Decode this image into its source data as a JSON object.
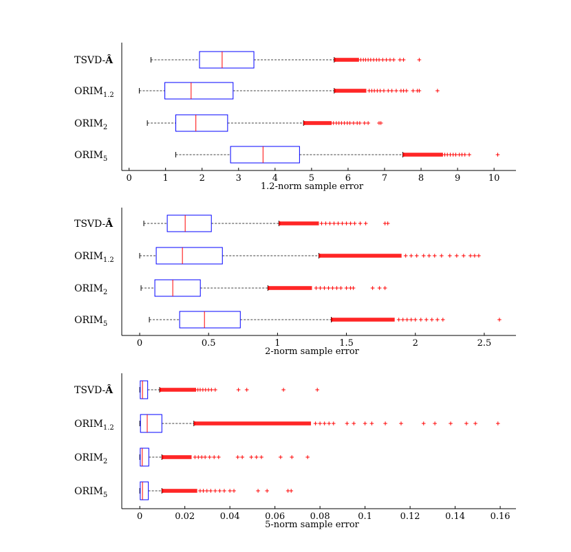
{
  "chart_data": [
    {
      "type": "boxplot",
      "title": "",
      "xlabel": "1.2-norm sample error",
      "ylabel": "",
      "xlim": [
        -0.2,
        10.6
      ],
      "xticks": [
        0,
        1,
        2,
        3,
        4,
        5,
        6,
        7,
        8,
        9,
        10
      ],
      "xtick_labels": [
        "0",
        "1",
        "2",
        "3",
        "4",
        "5",
        "6",
        "7",
        "8",
        "9",
        "10"
      ],
      "series": [
        {
          "name": "TSVD-Â",
          "label_main": "TSVD-",
          "label_bold": "Â",
          "label_sub": "",
          "whisker_low": 0.6,
          "q1": 1.93,
          "median": 2.55,
          "q3": 3.42,
          "whisker_high": 5.62,
          "outlier_dense_end": 6.3,
          "outliers": [
            6.35,
            6.42,
            6.48,
            6.55,
            6.62,
            6.7,
            6.78,
            6.85,
            6.95,
            7.05,
            7.15,
            7.25,
            7.42,
            7.52,
            7.95
          ]
        },
        {
          "name": "ORIM1.2",
          "label_main": "ORIM",
          "label_bold": "",
          "label_sub": "1.2",
          "whisker_low": 0.28,
          "q1": 0.98,
          "median": 1.7,
          "q3": 2.85,
          "whisker_high": 5.62,
          "outlier_dense_end": 6.5,
          "outliers": [
            6.58,
            6.65,
            6.72,
            6.8,
            6.88,
            6.98,
            7.1,
            7.2,
            7.32,
            7.45,
            7.52,
            7.6,
            7.78,
            7.9,
            7.95,
            8.45
          ]
        },
        {
          "name": "ORIM2",
          "label_main": "ORIM",
          "label_bold": "",
          "label_sub": "2",
          "whisker_low": 0.5,
          "q1": 1.28,
          "median": 1.83,
          "q3": 2.7,
          "whisker_high": 4.78,
          "outlier_dense_end": 5.55,
          "outliers": [
            5.6,
            5.68,
            5.75,
            5.82,
            5.9,
            5.98,
            6.05,
            6.15,
            6.25,
            6.32,
            6.45,
            6.55,
            6.85,
            6.9
          ]
        },
        {
          "name": "ORIM5",
          "label_main": "ORIM",
          "label_bold": "",
          "label_sub": "5",
          "whisker_low": 1.28,
          "q1": 2.78,
          "median": 3.67,
          "q3": 4.67,
          "whisker_high": 7.5,
          "outlier_dense_end": 8.6,
          "outliers": [
            8.65,
            8.72,
            8.8,
            8.88,
            8.95,
            9.05,
            9.12,
            9.2,
            9.32,
            10.1
          ]
        }
      ]
    },
    {
      "type": "boxplot",
      "title": "",
      "xlabel": "2-norm sample error",
      "ylabel": "",
      "xlim": [
        -0.13,
        2.73
      ],
      "xticks": [
        0,
        0.5,
        1,
        1.5,
        2,
        2.5
      ],
      "xtick_labels": [
        "0",
        "0.5",
        "1",
        "1.5",
        "2",
        "2.5"
      ],
      "series": [
        {
          "name": "TSVD-Â",
          "label_main": "TSVD-",
          "label_bold": "Â",
          "label_sub": "",
          "whisker_low": 0.03,
          "q1": 0.2,
          "median": 0.33,
          "q3": 0.52,
          "whisker_high": 1.01,
          "outlier_dense_end": 1.3,
          "outliers": [
            1.32,
            1.35,
            1.38,
            1.41,
            1.44,
            1.47,
            1.5,
            1.53,
            1.56,
            1.6,
            1.64,
            1.78,
            1.8
          ]
        },
        {
          "name": "ORIM1.2",
          "label_main": "ORIM",
          "label_bold": "",
          "label_sub": "1.2",
          "whisker_low": 0.0,
          "q1": 0.12,
          "median": 0.31,
          "q3": 0.6,
          "whisker_high": 1.3,
          "outlier_dense_end": 1.9,
          "outliers": [
            1.93,
            1.97,
            2.01,
            2.06,
            2.1,
            2.14,
            2.19,
            2.25,
            2.3,
            2.35,
            2.4,
            2.43,
            2.46
          ]
        },
        {
          "name": "ORIM2",
          "label_main": "ORIM",
          "label_bold": "",
          "label_sub": "2",
          "whisker_low": 0.01,
          "q1": 0.11,
          "median": 0.24,
          "q3": 0.44,
          "whisker_high": 0.93,
          "outlier_dense_end": 1.25,
          "outliers": [
            1.28,
            1.31,
            1.34,
            1.37,
            1.4,
            1.43,
            1.46,
            1.5,
            1.53,
            1.55,
            1.69,
            1.74,
            1.78
          ]
        },
        {
          "name": "ORIM5",
          "label_main": "ORIM",
          "label_bold": "",
          "label_sub": "5",
          "whisker_low": 0.07,
          "q1": 0.29,
          "median": 0.47,
          "q3": 0.73,
          "whisker_high": 1.39,
          "outlier_dense_end": 1.85,
          "outliers": [
            1.88,
            1.91,
            1.94,
            1.97,
            2.0,
            2.04,
            2.08,
            2.12,
            2.16,
            2.2,
            2.61
          ]
        }
      ]
    },
    {
      "type": "boxplot",
      "title": "",
      "xlabel": "5-norm sample error",
      "ylabel": "",
      "xlim": [
        -0.008,
        0.167
      ],
      "xticks": [
        0,
        0.02,
        0.04,
        0.06,
        0.08,
        0.1,
        0.12,
        0.14,
        0.16
      ],
      "xtick_labels": [
        "0",
        "0.02",
        "0.04",
        "0.06",
        "0.08",
        "0.1",
        "0.12",
        "0.14",
        "0.16"
      ],
      "series": [
        {
          "name": "TSVD-Â",
          "label_main": "TSVD-",
          "label_bold": "Â",
          "label_sub": "",
          "whisker_low": 0.0,
          "q1": 0.0002,
          "median": 0.0012,
          "q3": 0.0035,
          "whisker_high": 0.0088,
          "outlier_dense_end": 0.025,
          "outliers": [
            0.0258,
            0.0268,
            0.028,
            0.0292,
            0.0305,
            0.0318,
            0.0335,
            0.0438,
            0.0475,
            0.0638,
            0.0788
          ]
        },
        {
          "name": "ORIM1.2",
          "label_main": "ORIM",
          "label_bold": "",
          "label_sub": "1.2",
          "whisker_low": 0.0,
          "q1": 0.0003,
          "median": 0.0033,
          "q3": 0.0098,
          "whisker_high": 0.024,
          "outlier_dense_end": 0.076,
          "outliers": [
            0.078,
            0.08,
            0.082,
            0.084,
            0.086,
            0.092,
            0.095,
            0.1,
            0.103,
            0.109,
            0.116,
            0.126,
            0.131,
            0.138,
            0.145,
            0.149,
            0.159
          ]
        },
        {
          "name": "ORIM2",
          "label_main": "ORIM",
          "label_bold": "",
          "label_sub": "2",
          "whisker_low": 0.0,
          "q1": 0.0002,
          "median": 0.0011,
          "q3": 0.004,
          "whisker_high": 0.0098,
          "outlier_dense_end": 0.023,
          "outliers": [
            0.0245,
            0.026,
            0.0275,
            0.029,
            0.031,
            0.033,
            0.035,
            0.0435,
            0.0455,
            0.0495,
            0.0518,
            0.054,
            0.0625,
            0.0675,
            0.0745
          ]
        },
        {
          "name": "ORIM5",
          "label_main": "ORIM",
          "label_bold": "",
          "label_sub": "5",
          "whisker_low": 0.0,
          "q1": 0.0002,
          "median": 0.0012,
          "q3": 0.0038,
          "whisker_high": 0.0098,
          "outlier_dense_end": 0.0255,
          "outliers": [
            0.0268,
            0.0282,
            0.0298,
            0.0315,
            0.0335,
            0.0355,
            0.0375,
            0.04,
            0.0418,
            0.0525,
            0.0565,
            0.0658,
            0.0672
          ]
        }
      ]
    }
  ],
  "colors": {
    "box": "#0000ff",
    "median": "#ff0000",
    "whisker": "#000000",
    "outlier": "#ff0000",
    "axis": "#000000"
  }
}
